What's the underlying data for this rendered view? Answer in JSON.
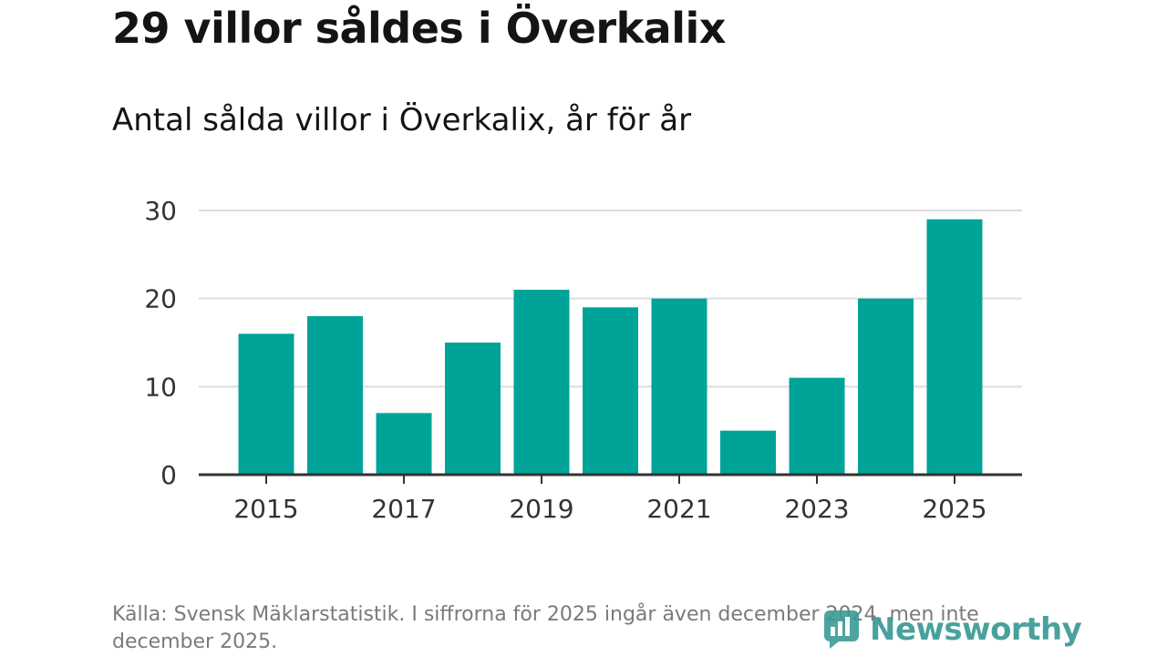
{
  "title": "29 villor såldes i Överkalix",
  "subtitle": "Antal sålda villor i Överkalix, år för år",
  "footnote": "Källa: Svensk Mäklarstatistik. I siffrorna för 2025 ingår även december 2024, men inte december 2025.",
  "brand": "Newsworthy",
  "colors": {
    "bar": "#00a398",
    "grid": "#dddddd",
    "axis": "#333333",
    "text": "#333333",
    "brand": "#3a9a96"
  },
  "chart_data": {
    "type": "bar",
    "categories": [
      "2015",
      "2016",
      "2017",
      "2018",
      "2019",
      "2020",
      "2021",
      "2022",
      "2023",
      "2024",
      "2025"
    ],
    "values": [
      16,
      18,
      7,
      15,
      21,
      19,
      20,
      5,
      11,
      20,
      29
    ],
    "x_tick_labels": [
      "2015",
      "2017",
      "2019",
      "2021",
      "2023",
      "2025"
    ],
    "y_ticks": [
      0,
      10,
      20,
      30
    ],
    "ylim": [
      0,
      30
    ],
    "xlabel": "",
    "ylabel": "",
    "grid": true
  }
}
